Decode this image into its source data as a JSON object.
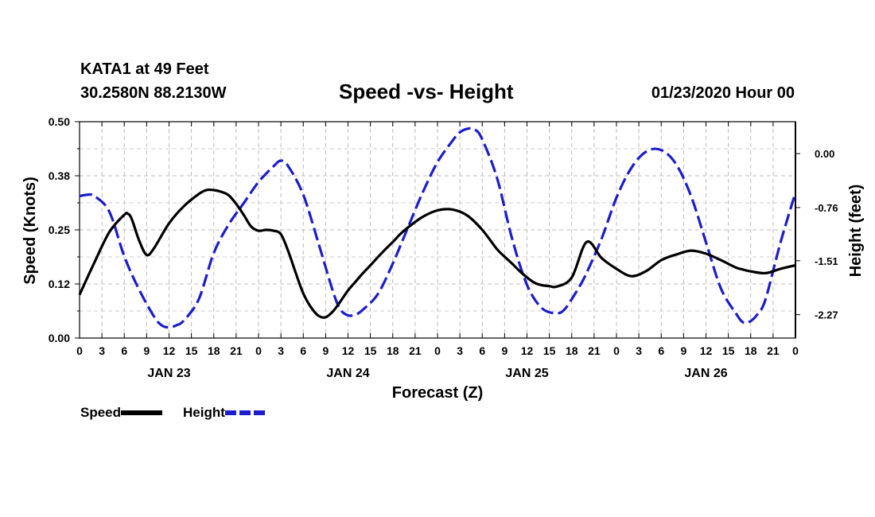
{
  "header": {
    "station": "KATA1 at 49 Feet",
    "latlon": "30.2580N 88.2130W",
    "datetime": "01/23/2020 Hour 00"
  },
  "chart_data": {
    "type": "line",
    "title": "Speed -vs- Height",
    "xlabel": "Forecast (Z)",
    "ylabel_left": "Speed (Knots)",
    "ylabel_right": "Height (feet)",
    "x_unit": "hours from 01/23 00Z",
    "xlim": [
      0,
      96
    ],
    "ylim_left": [
      0,
      0.5
    ],
    "ylim_right": [
      -2.6,
      0.45
    ],
    "left_ticks": [
      "0.00",
      "0.12",
      "0.25",
      "0.38",
      "0.50"
    ],
    "left_tick_values": [
      0,
      0.125,
      0.25,
      0.375,
      0.5
    ],
    "right_ticks": [
      "0.00",
      "-0.76",
      "-1.51",
      "-2.27"
    ],
    "right_tick_values": [
      0,
      -0.76,
      -1.51,
      -2.27
    ],
    "x_tick_labels": [
      "0",
      "3",
      "6",
      "9",
      "12",
      "15",
      "18",
      "21",
      "0",
      "3",
      "6",
      "9",
      "12",
      "15",
      "18",
      "21",
      "0",
      "3",
      "6",
      "9",
      "12",
      "15",
      "18",
      "21",
      "0",
      "3",
      "6",
      "9",
      "12",
      "15",
      "18",
      "21",
      "0"
    ],
    "day_labels": [
      "JAN 23",
      "JAN 24",
      "JAN 25",
      "JAN 26"
    ],
    "grid": true,
    "series": [
      {
        "name": "Speed",
        "axis": "left",
        "color": "#000000",
        "style": "solid",
        "x": [
          0,
          2,
          4,
          6,
          6.5,
          7,
          8,
          9,
          10,
          12,
          14,
          16,
          17,
          18,
          19,
          20,
          21,
          22,
          23,
          24,
          25,
          26,
          27,
          28,
          29,
          30,
          31,
          32,
          33,
          34,
          35,
          36,
          37,
          38,
          39,
          40,
          41,
          42,
          43,
          44,
          46,
          48,
          50,
          52,
          54,
          56,
          57,
          58,
          59,
          60,
          61,
          62,
          63,
          64,
          66,
          68,
          70,
          72,
          74,
          76,
          78,
          80,
          82,
          84,
          86,
          88,
          89,
          90,
          92,
          94,
          96
        ],
        "values": [
          0.1,
          0.175,
          0.245,
          0.285,
          0.287,
          0.275,
          0.225,
          0.192,
          0.208,
          0.265,
          0.305,
          0.333,
          0.342,
          0.342,
          0.338,
          0.33,
          0.31,
          0.285,
          0.258,
          0.248,
          0.25,
          0.248,
          0.24,
          0.2,
          0.15,
          0.103,
          0.072,
          0.052,
          0.048,
          0.062,
          0.085,
          0.11,
          0.13,
          0.15,
          0.168,
          0.187,
          0.205,
          0.222,
          0.24,
          0.255,
          0.28,
          0.295,
          0.297,
          0.283,
          0.25,
          0.205,
          0.188,
          0.172,
          0.155,
          0.14,
          0.128,
          0.122,
          0.12,
          0.119,
          0.14,
          0.222,
          0.185,
          0.16,
          0.143,
          0.155,
          0.18,
          0.193,
          0.202,
          0.195,
          0.18,
          0.163,
          0.158,
          0.154,
          0.15,
          0.16,
          0.168
        ]
      },
      {
        "name": "Height",
        "axis": "right",
        "color": "#1c1ccc",
        "style": "dashed",
        "x": [
          0,
          1,
          2,
          4,
          6,
          8,
          10,
          11,
          12,
          13,
          14,
          16,
          18,
          20,
          22,
          24,
          26,
          27,
          28,
          30,
          32,
          34,
          35,
          36,
          37,
          38,
          40,
          42,
          44,
          46,
          48,
          50,
          51,
          52,
          53,
          54,
          56,
          58,
          60,
          62,
          64,
          65,
          66,
          67,
          68,
          70,
          72,
          74,
          76,
          78,
          80,
          82,
          84,
          86,
          88,
          89,
          90,
          91,
          92,
          94,
          96
        ],
        "values": [
          -0.6,
          -0.58,
          -0.6,
          -0.82,
          -1.45,
          -1.92,
          -2.3,
          -2.42,
          -2.45,
          -2.42,
          -2.35,
          -2.05,
          -1.4,
          -1.0,
          -0.7,
          -0.4,
          -0.18,
          -0.1,
          -0.18,
          -0.58,
          -1.25,
          -1.95,
          -2.2,
          -2.28,
          -2.27,
          -2.2,
          -1.98,
          -1.55,
          -1.05,
          -0.55,
          -0.12,
          0.18,
          0.3,
          0.35,
          0.34,
          0.2,
          -0.35,
          -1.2,
          -1.85,
          -2.18,
          -2.25,
          -2.2,
          -2.05,
          -1.88,
          -1.68,
          -1.2,
          -0.62,
          -0.2,
          0.03,
          0.05,
          -0.15,
          -0.6,
          -1.25,
          -1.9,
          -2.25,
          -2.38,
          -2.36,
          -2.25,
          -2.05,
          -1.25,
          -0.55
        ]
      }
    ]
  },
  "legend": {
    "speed_label": "Speed",
    "height_label": "Height",
    "speed_color": "#000000",
    "height_color": "#1c1ccc"
  }
}
